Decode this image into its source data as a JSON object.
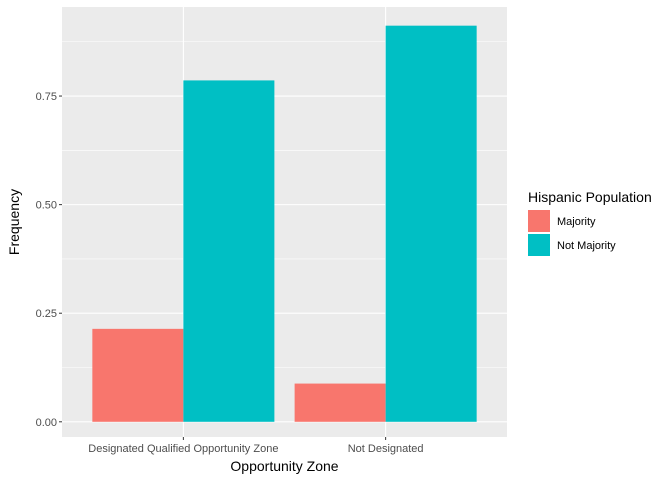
{
  "chart_data": {
    "type": "bar",
    "title": "",
    "xlabel": "Opportunity Zone",
    "ylabel": "Frequency",
    "categories": [
      "Designated Qualified Opportunity Zone",
      "Not Designated"
    ],
    "series": [
      {
        "name": "Majority",
        "values": [
          0.214,
          0.088
        ],
        "color": "#F8766D"
      },
      {
        "name": "Not Majority",
        "values": [
          0.786,
          0.912
        ],
        "color": "#00BFC4"
      }
    ],
    "ylim": [
      -0.035,
      0.955
    ],
    "yticks": [
      0.0,
      0.25,
      0.5,
      0.75
    ],
    "ytick_labels": [
      "0.00",
      "0.25",
      "0.50",
      "0.75"
    ],
    "grid": true,
    "panel_background": "#EBEBEB",
    "legend": {
      "title": "Hispanic Population",
      "position": "right"
    }
  }
}
